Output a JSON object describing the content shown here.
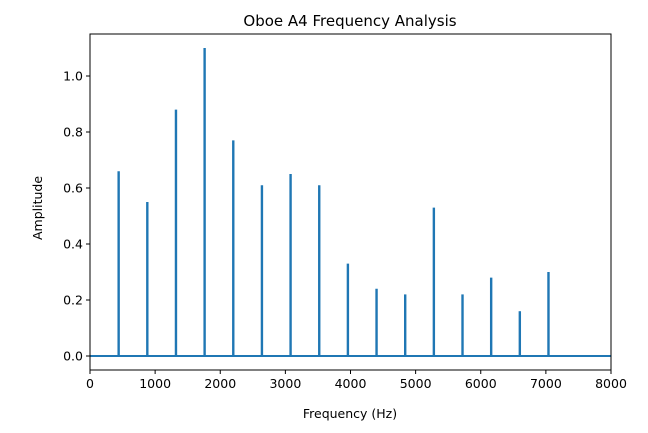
{
  "chart_data": {
    "type": "bar",
    "title": "Oboe A4 Frequency Analysis",
    "xlabel": "Frequency (Hz)",
    "ylabel": "Amplitude",
    "xlim": [
      0,
      8000
    ],
    "ylim": [
      -0.05,
      1.15
    ],
    "x_ticks": [
      0,
      1000,
      2000,
      3000,
      4000,
      5000,
      6000,
      7000,
      8000
    ],
    "x_tick_labels": [
      "0",
      "1000",
      "2000",
      "3000",
      "4000",
      "5000",
      "6000",
      "7000",
      "8000"
    ],
    "y_ticks": [
      0.0,
      0.2,
      0.4,
      0.6,
      0.8,
      1.0
    ],
    "y_tick_labels": [
      "0.0",
      "0.2",
      "0.4",
      "0.6",
      "0.8",
      "1.0"
    ],
    "grid": false,
    "legend": false,
    "color": "#1f77b4",
    "x": [
      440,
      880,
      1320,
      1760,
      2200,
      2640,
      3080,
      3520,
      3960,
      4400,
      4840,
      5280,
      5720,
      6160,
      6600,
      7040
    ],
    "values": [
      0.66,
      0.55,
      0.88,
      1.1,
      0.77,
      0.61,
      0.65,
      0.61,
      0.33,
      0.24,
      0.22,
      0.53,
      0.22,
      0.28,
      0.16,
      0.3
    ]
  }
}
